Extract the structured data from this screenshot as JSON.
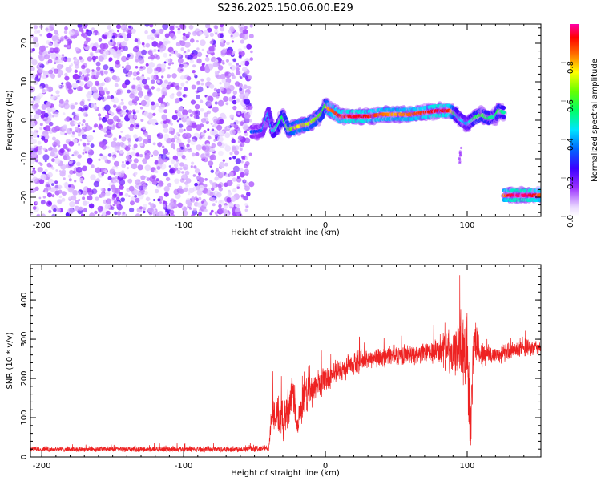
{
  "title": "S236.2025.150.06.00.E29",
  "colors": {
    "snr_line": "#ee2222",
    "ridge_core": "#dd1111",
    "noise": "#8a2be2"
  },
  "chart_data": [
    {
      "type": "heatmap",
      "xlabel": "Height of straight line (km)",
      "ylabel": "Frequency (Hz)",
      "xlim": [
        -208,
        152
      ],
      "ylim": [
        -25,
        25
      ],
      "x_ticks": [
        -200,
        -100,
        0,
        100
      ],
      "y_ticks": [
        -20,
        -10,
        0,
        10,
        20
      ],
      "colorbar": {
        "label": "Normalized spectral amplitude",
        "range": [
          0,
          1
        ],
        "ticks": [
          "0.0",
          "0.2",
          "0.4",
          "0.6",
          "0.8"
        ],
        "colormap": "rainbow (white/purple → blue → cyan → green → yellow → red → magenta)"
      },
      "noise_region": {
        "x_range": [
          -208,
          -52
        ],
        "description": "scattered broadband noise across all frequencies"
      },
      "ridge": {
        "x": [
          -52,
          -48,
          -44,
          -40,
          -37,
          -34,
          -30,
          -26,
          -22,
          -18,
          -12,
          -6,
          -2,
          0,
          2,
          5,
          10,
          20,
          30,
          40,
          50,
          60,
          70,
          80,
          88,
          92,
          96,
          100,
          105,
          110,
          115,
          120,
          122,
          126
        ],
        "y": [
          -3,
          -3,
          -2.5,
          2,
          -3,
          -2,
          1,
          -2.5,
          -2,
          -1.5,
          -1,
          0.5,
          2,
          4,
          3,
          2.5,
          1,
          1,
          1,
          1.5,
          1.5,
          1.5,
          2,
          2.5,
          2.5,
          1.5,
          0,
          -1,
          0.5,
          1.5,
          0.5,
          1,
          2.5,
          2
        ],
        "amplitude": [
          0.35,
          0.3,
          0.35,
          0.4,
          0.45,
          0.5,
          0.55,
          0.6,
          0.7,
          0.75,
          0.7,
          0.65,
          0.6,
          0.55,
          0.8,
          0.85,
          0.9,
          0.95,
          0.92,
          0.85,
          0.8,
          0.85,
          0.9,
          0.95,
          0.9,
          0.5,
          0.45,
          0.4,
          0.55,
          0.6,
          0.55,
          0.5,
          0.6,
          0.5
        ]
      },
      "ridge_lower": {
        "x": [
          126,
          130,
          135,
          140,
          145,
          150,
          152
        ],
        "y": [
          -19.5,
          -19.5,
          -19.5,
          -19.5,
          -19.5,
          -19.5,
          -19.5
        ],
        "amplitude": [
          0.8,
          0.95,
          0.98,
          0.98,
          0.95,
          0.9,
          0.85
        ]
      },
      "stray_component": {
        "x": [
          95
        ],
        "y": [
          -10
        ],
        "amplitude": [
          0.15
        ]
      }
    },
    {
      "type": "line",
      "xlabel": "Height of straight line (km)",
      "ylabel": "SNR (10 * v/v)",
      "xlim": [
        -208,
        152
      ],
      "ylim": [
        0,
        490
      ],
      "x_ticks": [
        -200,
        -100,
        0,
        100
      ],
      "y_ticks": [
        0,
        100,
        200,
        300,
        400
      ],
      "series": [
        {
          "x": [
            -208,
            -150,
            -100,
            -60,
            -40,
            -38,
            -35,
            -30,
            -25,
            -22,
            -20,
            -15,
            -10,
            0,
            10,
            20,
            30,
            40,
            50,
            60,
            70,
            80,
            85,
            90,
            95,
            98,
            100,
            102,
            105,
            110,
            120,
            130,
            140,
            152
          ],
          "y": [
            20,
            20,
            20,
            20,
            22,
            110,
            105,
            90,
            140,
            160,
            70,
            150,
            170,
            200,
            220,
            240,
            250,
            255,
            260,
            262,
            265,
            270,
            280,
            250,
            300,
            250,
            320,
            80,
            300,
            260,
            260,
            270,
            275,
            280
          ],
          "spread": [
            8,
            8,
            8,
            9,
            10,
            45,
            55,
            60,
            60,
            70,
            50,
            55,
            50,
            40,
            35,
            35,
            30,
            30,
            30,
            30,
            30,
            40,
            70,
            60,
            90,
            120,
            150,
            130,
            80,
            40,
            30,
            25,
            25,
            25
          ]
        }
      ]
    }
  ]
}
